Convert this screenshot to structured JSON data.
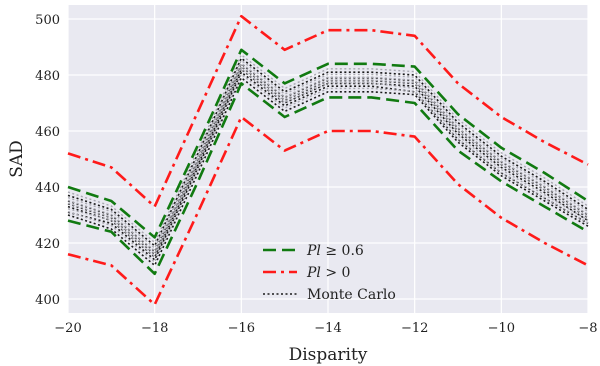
{
  "chart_data": {
    "type": "line",
    "xlabel": "Disparity",
    "ylabel": "SAD",
    "xlim": [
      -20,
      -8
    ],
    "ylim": [
      395,
      505
    ],
    "xticks": [
      -20,
      -18,
      -16,
      -14,
      -12,
      -10,
      -8
    ],
    "xtick_labels": [
      "−20",
      "−18",
      "−16",
      "−14",
      "−12",
      "−10",
      "−8"
    ],
    "yticks": [
      400,
      420,
      440,
      460,
      480,
      500
    ],
    "ytick_labels": [
      "400",
      "420",
      "440",
      "460",
      "480",
      "500"
    ],
    "grid": true,
    "background": "#e9e9f1",
    "legend_position": "lower-center",
    "x": [
      -20,
      -19,
      -18,
      -17,
      -16,
      -15,
      -14,
      -13,
      -12,
      -11,
      -10,
      -9,
      -8
    ],
    "series": [
      {
        "name": "Pl ≥ 0.6",
        "legend_label": "Pl ≥ 0.6",
        "color": "#117a11",
        "style": "dashed",
        "bands": [
          [
            440,
            435,
            422,
            455,
            489,
            477,
            484,
            484,
            483,
            466,
            454,
            445,
            435
          ],
          [
            428,
            424,
            409,
            442,
            477,
            465,
            472,
            472,
            470,
            453,
            442,
            433,
            424
          ]
        ]
      },
      {
        "name": "Pl > 0",
        "legend_label": "Pl > 0",
        "color": "#ff1a1a",
        "style": "dashdot",
        "bands": [
          [
            452,
            447,
            433,
            467,
            501,
            489,
            496,
            496,
            494,
            477,
            465,
            456,
            448
          ],
          [
            416,
            412,
            398,
            431,
            465,
            453,
            460,
            460,
            458,
            441,
            429,
            420,
            412
          ]
        ]
      },
      {
        "name": "Monte Carlo",
        "legend_label": "Monte Carlo",
        "color": "#1a1a1a",
        "style": "dotted",
        "bands": [
          [
            437,
            432,
            419,
            452,
            486,
            474,
            481,
            481,
            480,
            463,
            451,
            442,
            432
          ],
          [
            435,
            430,
            417,
            450,
            484,
            472,
            479,
            479,
            478,
            461,
            449,
            440,
            430
          ],
          [
            434,
            429,
            416,
            449,
            483,
            471,
            478,
            478,
            477,
            460,
            448,
            439,
            429
          ],
          [
            433,
            428,
            415,
            448,
            482,
            470,
            477,
            477,
            476,
            459,
            447,
            438,
            428
          ],
          [
            431,
            427,
            414,
            447,
            481,
            469,
            476,
            476,
            474,
            457,
            445,
            436,
            427
          ],
          [
            430,
            425,
            412,
            445,
            479,
            467,
            474,
            474,
            473,
            456,
            444,
            435,
            426
          ]
        ]
      }
    ],
    "monte_carlo_light_color": "#a8a8b0"
  }
}
